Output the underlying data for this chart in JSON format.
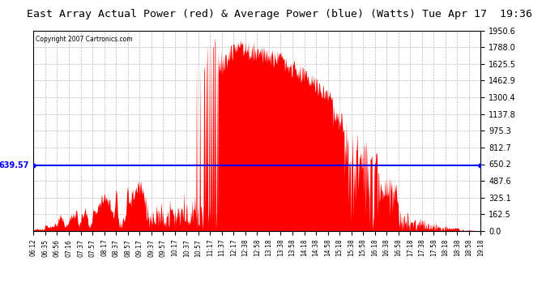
{
  "title": "East Array Actual Power (red) & Average Power (blue) (Watts) Tue Apr 17  19:36",
  "copyright": "Copyright 2007 Cartronics.com",
  "avg_value": 639.57,
  "ymax": 1950.6,
  "ymin": 0.0,
  "yticks": [
    0.0,
    162.5,
    325.1,
    487.6,
    650.2,
    812.7,
    975.3,
    1137.8,
    1300.4,
    1462.9,
    1625.5,
    1788.0,
    1950.6
  ],
  "background_color": "#ffffff",
  "plot_bg_color": "#ffffff",
  "grid_color": "#bbbbbb",
  "red_color": "#ff0000",
  "blue_color": "#0000ff",
  "title_fontsize": 11,
  "xtick_labels": [
    "06:12",
    "06:35",
    "06:56",
    "07:16",
    "07:37",
    "07:57",
    "08:17",
    "08:37",
    "08:57",
    "09:17",
    "09:37",
    "09:57",
    "10:17",
    "10:37",
    "10:57",
    "11:17",
    "11:37",
    "12:17",
    "12:38",
    "12:58",
    "13:18",
    "13:38",
    "13:58",
    "14:18",
    "14:38",
    "14:58",
    "15:18",
    "15:38",
    "15:58",
    "16:18",
    "16:38",
    "16:58",
    "17:18",
    "17:38",
    "17:58",
    "18:18",
    "18:38",
    "18:58",
    "19:18"
  ]
}
